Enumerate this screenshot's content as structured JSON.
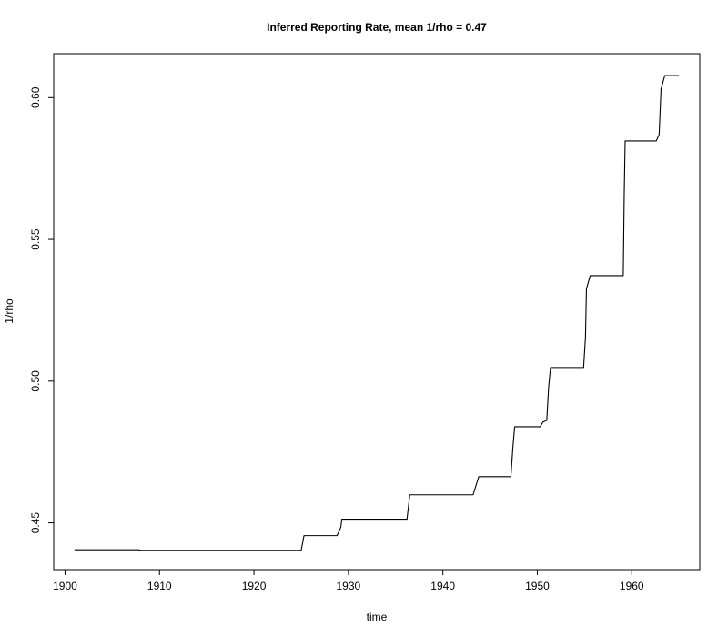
{
  "chart_data": {
    "type": "line",
    "title": "Inferred Reporting Rate, mean 1/rho = 0.47",
    "xlabel": "time",
    "ylabel": "1/rho",
    "xlim": [
      1898.8,
      1967.2
    ],
    "ylim": [
      0.4335,
      0.6155
    ],
    "x_ticks": [
      1900,
      1910,
      1920,
      1930,
      1940,
      1950,
      1960
    ],
    "x_tick_labels": [
      "1900",
      "1910",
      "1920",
      "1930",
      "1940",
      "1950",
      "1960"
    ],
    "y_ticks": [
      0.45,
      0.5,
      0.55,
      0.6
    ],
    "y_tick_labels": [
      "0.45",
      "0.50",
      "0.55",
      "0.60"
    ],
    "grid": false,
    "series": [
      {
        "color": "#000000",
        "x": [
          1901.0,
          1907.8,
          1908.0,
          1925.0,
          1925.3,
          1928.8,
          1929.2,
          1929.3,
          1936.2,
          1936.5,
          1943.2,
          1943.8,
          1947.2,
          1947.4,
          1947.6,
          1950.3,
          1950.6,
          1951.0,
          1951.2,
          1951.4,
          1954.9,
          1955.1,
          1955.2,
          1955.6,
          1959.1,
          1959.2,
          1959.3,
          1962.6,
          1962.9,
          1963.1,
          1963.5,
          1965.0
        ],
        "y": [
          0.4405,
          0.4405,
          0.4403,
          0.4403,
          0.4455,
          0.4455,
          0.4485,
          0.4513,
          0.4513,
          0.4599,
          0.4599,
          0.4663,
          0.4663,
          0.476,
          0.4839,
          0.4839,
          0.4856,
          0.4862,
          0.498,
          0.5048,
          0.5048,
          0.5155,
          0.5325,
          0.5372,
          0.5372,
          0.5655,
          0.5847,
          0.5847,
          0.587,
          0.603,
          0.6078,
          0.6078
        ]
      }
    ]
  }
}
